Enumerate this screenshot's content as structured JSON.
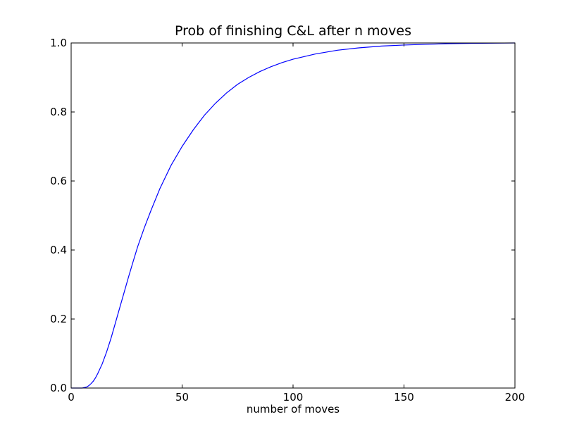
{
  "chart_data": {
    "type": "line",
    "title": "Prob of finishing C&L after n moves",
    "xlabel": "number of moves",
    "ylabel": "",
    "xlim": [
      0,
      200
    ],
    "ylim": [
      0,
      1.0
    ],
    "xticks": [
      0,
      50,
      100,
      150,
      200
    ],
    "xtick_labels": [
      "0",
      "50",
      "100",
      "150",
      "200"
    ],
    "yticks": [
      0,
      0.2,
      0.4,
      0.6,
      0.8,
      1.0
    ],
    "ytick_labels": [
      "0.0",
      "0.2",
      "0.4",
      "0.6",
      "0.8",
      "1.0"
    ],
    "grid": false,
    "legend": "none",
    "series": [
      {
        "color": "#0000ff",
        "x": [
          0,
          5,
          7,
          8,
          9,
          10,
          11,
          12,
          14,
          16,
          18,
          20,
          22,
          24,
          26,
          28,
          30,
          33,
          36,
          40,
          45,
          50,
          55,
          60,
          65,
          70,
          75,
          80,
          85,
          90,
          95,
          100,
          110,
          120,
          130,
          140,
          150,
          160,
          170,
          180,
          190,
          200
        ],
        "y": [
          0,
          0,
          0.003,
          0.007,
          0.013,
          0.02,
          0.03,
          0.042,
          0.07,
          0.105,
          0.145,
          0.19,
          0.235,
          0.28,
          0.325,
          0.368,
          0.41,
          0.465,
          0.515,
          0.578,
          0.645,
          0.7,
          0.748,
          0.79,
          0.825,
          0.855,
          0.88,
          0.9,
          0.917,
          0.931,
          0.943,
          0.953,
          0.968,
          0.979,
          0.986,
          0.991,
          0.994,
          0.996,
          0.998,
          0.999,
          0.9995,
          1.0
        ]
      }
    ]
  }
}
